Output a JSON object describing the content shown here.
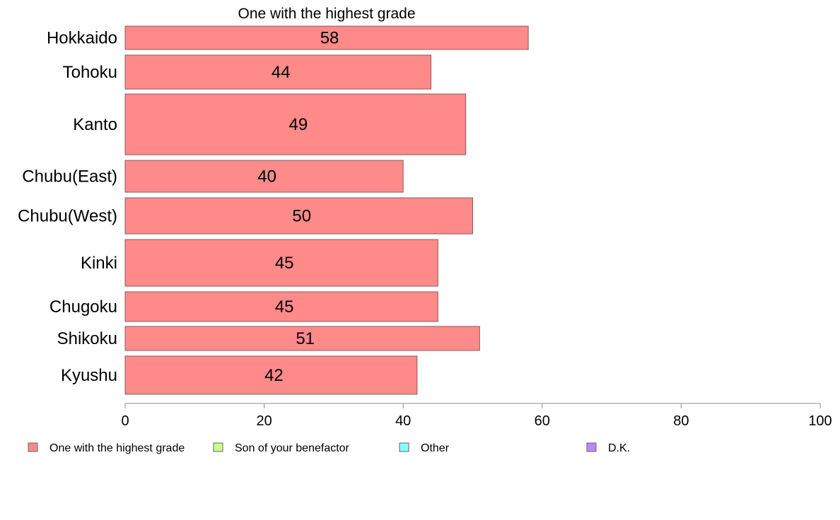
{
  "chart_data": {
    "type": "bar",
    "orientation": "horizontal",
    "title": "One with the highest grade",
    "categories": [
      "Hokkaido",
      "Tohoku",
      "Kanto",
      "Chubu(East)",
      "Chubu(West)",
      "Kinki",
      "Chugoku",
      "Shikoku",
      "Kyushu"
    ],
    "series": [
      {
        "name": "One with the highest grade",
        "color": "#ff8a8a",
        "values": [
          58,
          44,
          49,
          40,
          50,
          45,
          45,
          51,
          42
        ]
      }
    ],
    "xlim": [
      0,
      100
    ],
    "xticks": [
      "0",
      "20",
      "40",
      "60",
      "80",
      "100"
    ],
    "grid": false,
    "legend": {
      "placement": "bottom",
      "items": [
        {
          "label": "One with the highest grade",
          "color": "#ff8a8a"
        },
        {
          "label": "Son of your benefactor",
          "color": "#ccff88"
        },
        {
          "label": "Other",
          "color": "#88ffff"
        },
        {
          "label": "D.K.",
          "color": "#bb88ff"
        }
      ]
    }
  }
}
